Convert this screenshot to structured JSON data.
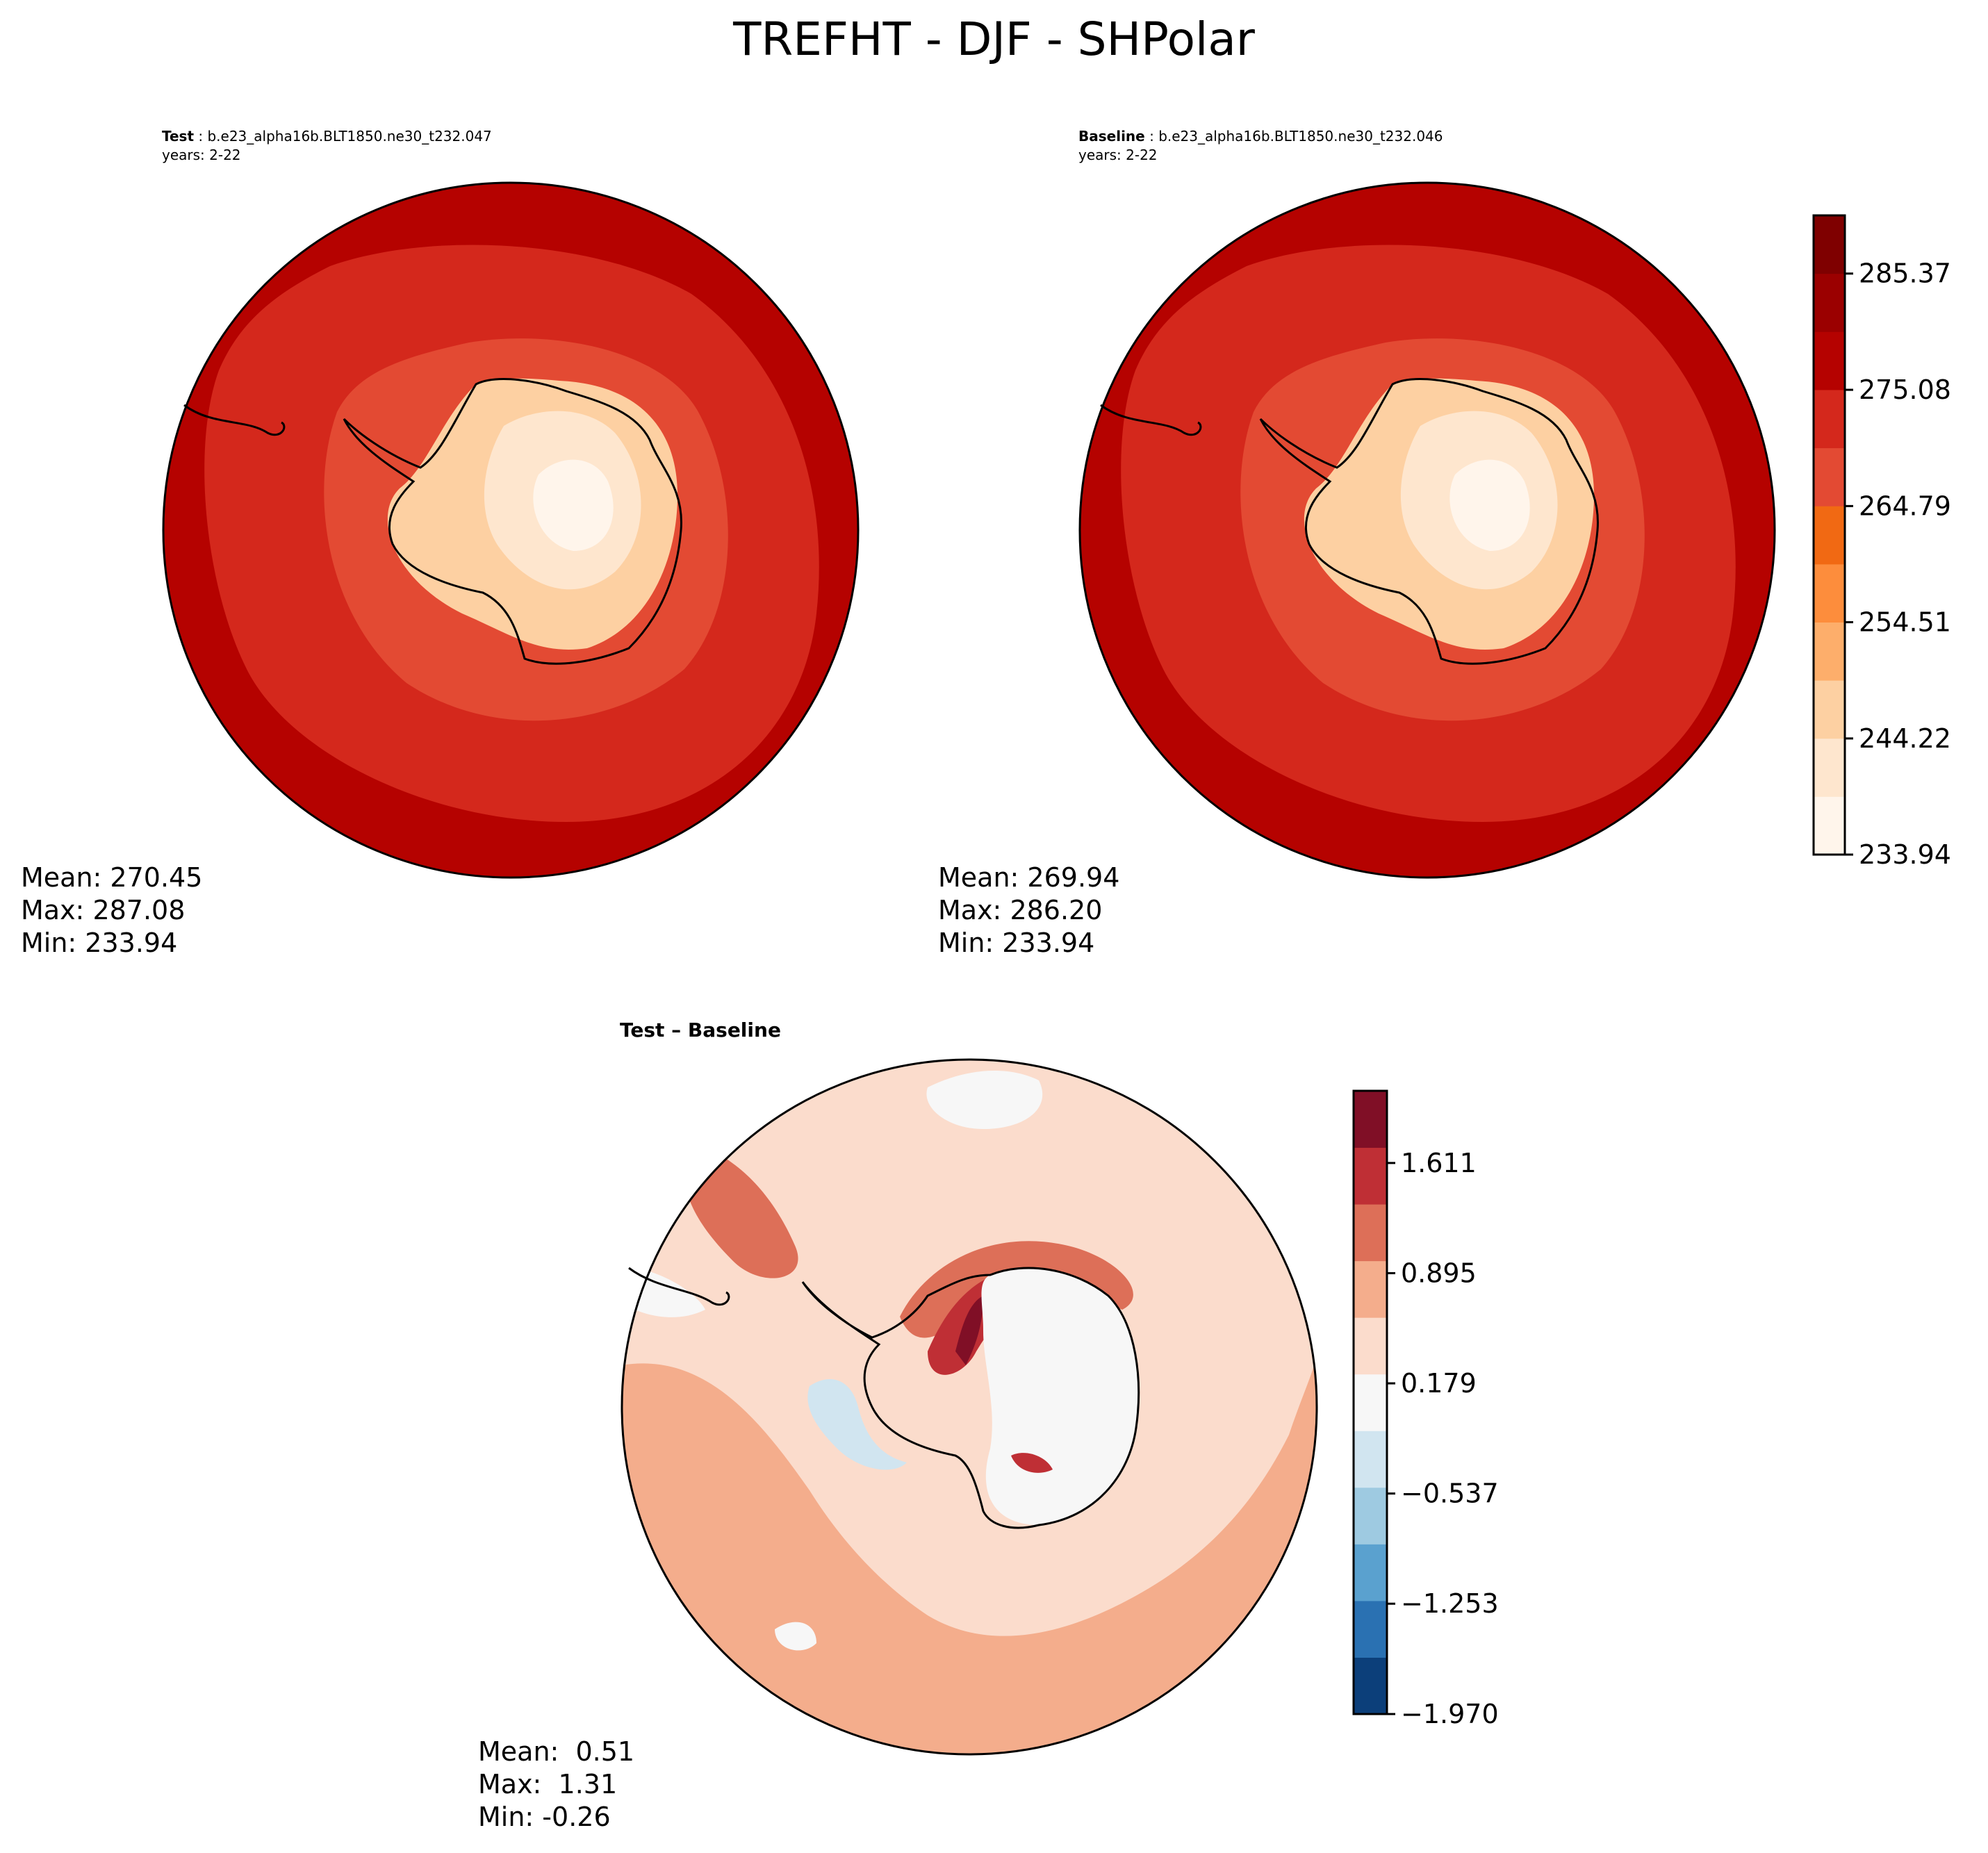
{
  "title": "TREFHT - DJF - SHPolar",
  "panels": [
    {
      "id": "test",
      "label_bold": "Test",
      "label_rest": " : b.e23_alpha16b.BLT1850.ne30_t232.047",
      "years": "years: 2-22",
      "stats": {
        "mean": "Mean: 270.45",
        "max": "Max: 287.08",
        "min": "Min: 233.94"
      }
    },
    {
      "id": "baseline",
      "label_bold": "Baseline",
      "label_rest": " : b.e23_alpha16b.BLT1850.ne30_t232.046",
      "years": "years: 2-22",
      "stats": {
        "mean": "Mean: 269.94",
        "max": "Max: 286.20",
        "min": "Min: 233.94"
      }
    },
    {
      "id": "diff",
      "label_bold": "Test – Baseline",
      "stats": {
        "mean": "Mean:  0.51",
        "max": "Max:  1.31",
        "min": "Min: -0.26"
      }
    }
  ],
  "chart_data": [
    {
      "type": "heatmap",
      "projection": "south polar stereographic",
      "title": "Test : b.e23_alpha16b.BLT1850.ne30_t232.047",
      "subtitle": "years: 2-22",
      "stats": {
        "mean": 270.45,
        "max": 287.08,
        "min": 233.94
      },
      "contour_levels_range": [
        233.94,
        290.52
      ],
      "field_description": "coldest over East Antarctic plateau (~234-244), rising through ~255-265 on coast, ~270-280 over Southern Ocean, ~280-290 at outer rim"
    },
    {
      "type": "heatmap",
      "projection": "south polar stereographic",
      "title": "Baseline : b.e23_alpha16b.BLT1850.ne30_t232.046",
      "subtitle": "years: 2-22",
      "stats": {
        "mean": 269.94,
        "max": 286.2,
        "min": 233.94
      },
      "colorbar": {
        "ticks": [
          233.94,
          244.22,
          254.51,
          264.79,
          275.08,
          285.37
        ],
        "tick_labels": [
          "233.94",
          "244.22",
          "254.51",
          "264.79",
          "275.08",
          "285.37"
        ],
        "range": [
          233.94,
          290.52
        ],
        "n_bins": 11,
        "colors": [
          "#fff5eb",
          "#fee6ce",
          "#fdd0a2",
          "#fdae6b",
          "#fd8d3c",
          "#f16913",
          "#e34a33",
          "#d4281c",
          "#b50200",
          "#9b0000",
          "#7f0000"
        ]
      }
    },
    {
      "type": "heatmap",
      "projection": "south polar stereographic",
      "title": "Test – Baseline",
      "stats": {
        "mean": 0.51,
        "max": 1.31,
        "min": -0.26
      },
      "colorbar": {
        "ticks": [
          -1.97,
          -1.253,
          -0.537,
          0.179,
          0.895,
          1.611
        ],
        "tick_labels": [
          "−1.970",
          "−1.253",
          "−0.537",
          "0.179",
          "0.895",
          "1.611"
        ],
        "range": [
          -1.97,
          2.08
        ],
        "n_bins": 11,
        "colors": [
          "#0c3f7a",
          "#2a71b2",
          "#5aa1cf",
          "#9ecae1",
          "#d1e5f0",
          "#f7f7f7",
          "#fbdccc",
          "#f4ad8c",
          "#dd6f58",
          "#bf2f35",
          "#800f26"
        ]
      },
      "field_description": "mostly small positive (0.18-0.9) over ocean; peak ~1.3-1.6 near Antarctic Peninsula/Weddell sector; near-zero or slightly negative over parts of Antarctica"
    }
  ]
}
